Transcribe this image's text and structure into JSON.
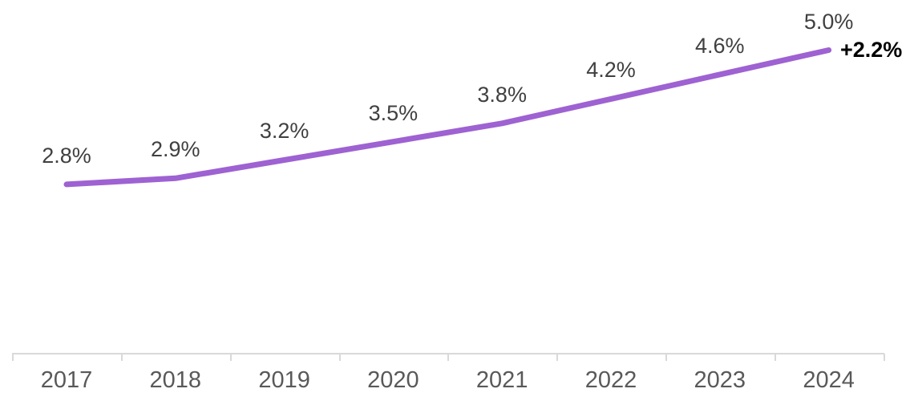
{
  "chart_data": {
    "type": "line",
    "title": "",
    "xlabel": "",
    "ylabel": "",
    "categories": [
      "2017",
      "2018",
      "2019",
      "2020",
      "2021",
      "2022",
      "2023",
      "2024"
    ],
    "values": [
      2.8,
      2.9,
      3.2,
      3.5,
      3.8,
      4.2,
      4.6,
      5.0
    ],
    "data_labels": [
      "2.8%",
      "2.9%",
      "3.2%",
      "3.5%",
      "3.8%",
      "4.2%",
      "4.6%",
      "5.0%"
    ],
    "annotation": "+2.2%",
    "ylim": [
      0,
      5.6
    ],
    "grid": false,
    "legend": "none",
    "colors": {
      "line": "#9E62D2",
      "data_label": "#404040",
      "axis_label": "#595959",
      "annotation": "#000000",
      "axis_line": "#D9D9D9"
    }
  }
}
